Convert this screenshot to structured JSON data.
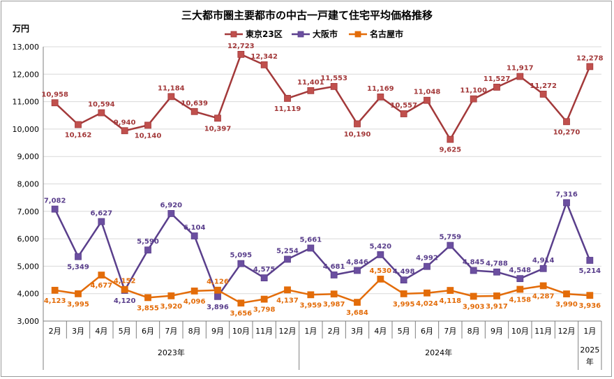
{
  "chart_data": {
    "type": "line",
    "title": "三大都市圏主要都市の中古一戸建て住宅平均価格推移",
    "y_unit": "万円",
    "ylim": [
      3000,
      13000
    ],
    "y_ticks": [
      "3,000",
      "4,000",
      "5,000",
      "6,000",
      "7,000",
      "8,000",
      "9,000",
      "10,000",
      "11,000",
      "12,000",
      "13,000"
    ],
    "categories": [
      "2月",
      "3月",
      "4月",
      "5月",
      "6月",
      "7月",
      "8月",
      "9月",
      "10月",
      "11月",
      "12月",
      "1月",
      "2月",
      "3月",
      "4月",
      "5月",
      "6月",
      "7月",
      "8月",
      "9月",
      "10月",
      "11月",
      "12月",
      "1月"
    ],
    "year_groups": [
      {
        "label": "2023年",
        "start": 0,
        "count": 11
      },
      {
        "label": "2024年",
        "start": 11,
        "count": 12
      },
      {
        "label": "2025年",
        "start": 23,
        "count": 1
      }
    ],
    "legend_position": "top",
    "grid": true,
    "series": [
      {
        "name": "東京23区",
        "color": "#c0504d",
        "line_color": "#a3393a",
        "values": [
          10958,
          10162,
          10594,
          9940,
          10140,
          11184,
          10639,
          10397,
          12723,
          12342,
          11119,
          11401,
          11553,
          10190,
          11169,
          10557,
          11048,
          9625,
          11100,
          11527,
          11917,
          11272,
          10270,
          12278
        ],
        "labels": [
          "10,958",
          "10,162",
          "10,594",
          "9,940",
          "10,140",
          "11,184",
          "10,639",
          "10,397",
          "12,723",
          "12,342",
          "11,119",
          "11,401",
          "11,553",
          "10,190",
          "11,169",
          "10,557",
          "11,048",
          "9,625",
          "11,100",
          "11,527",
          "11,917",
          "11,272",
          "10,270",
          "12,278"
        ],
        "label_positions": [
          "above",
          "below",
          "above",
          "above",
          "below",
          "above",
          "above",
          "below",
          "above",
          "above",
          "below",
          "above",
          "above",
          "below",
          "above",
          "above",
          "above",
          "below",
          "above",
          "above",
          "above",
          "above",
          "below",
          "above"
        ]
      },
      {
        "name": "大阪市",
        "color": "#6b4fa0",
        "line_color": "#5a3f8c",
        "values": [
          7082,
          5349,
          6627,
          4120,
          5590,
          6920,
          6104,
          3896,
          5095,
          4575,
          5254,
          5661,
          4681,
          4846,
          5420,
          4498,
          4992,
          5759,
          4845,
          4788,
          4548,
          4914,
          7316,
          5214
        ],
        "labels": [
          "7,082",
          "5,349",
          "6,627",
          "4,120",
          "5,590",
          "6,920",
          "6,104",
          "3,896",
          "5,095",
          "4,575",
          "5,254",
          "5,661",
          "4,681",
          "4,846",
          "5,420",
          "4,498",
          "4,992",
          "5,759",
          "4,845",
          "4,788",
          "4,548",
          "4,914",
          "7,316",
          "5,214"
        ],
        "label_positions": [
          "above",
          "below",
          "above",
          "below",
          "above",
          "above",
          "above",
          "below",
          "above",
          "above",
          "above",
          "above",
          "above",
          "above",
          "above",
          "above",
          "above",
          "above",
          "above",
          "above",
          "above",
          "above",
          "above",
          "below"
        ]
      },
      {
        "name": "名古屋市",
        "color": "#e36c09",
        "line_color": "#e36c09",
        "values": [
          4123,
          3995,
          4677,
          4152,
          3855,
          3920,
          4096,
          4126,
          3656,
          3798,
          4137,
          3959,
          3987,
          3684,
          4530,
          3995,
          4024,
          4118,
          3903,
          3917,
          4158,
          4287,
          3990,
          3936
        ],
        "labels": [
          "4,123",
          "3,995",
          "4,677",
          "4,152",
          "3,855",
          "3,920",
          "4,096",
          "4,126",
          "3,656",
          "3,798",
          "4,137",
          "3,959",
          "3,987",
          "3,684",
          "4,530",
          "3,995",
          "4,024",
          "4,118",
          "3,903",
          "3,917",
          "4,158",
          "4,287",
          "3,990",
          "3,936"
        ],
        "label_positions": [
          "below",
          "below",
          "below",
          "above",
          "below",
          "below",
          "below",
          "above",
          "below",
          "below",
          "below",
          "below",
          "below",
          "below",
          "above",
          "below",
          "below",
          "below",
          "below",
          "below",
          "below",
          "below",
          "below",
          "below"
        ]
      }
    ]
  }
}
